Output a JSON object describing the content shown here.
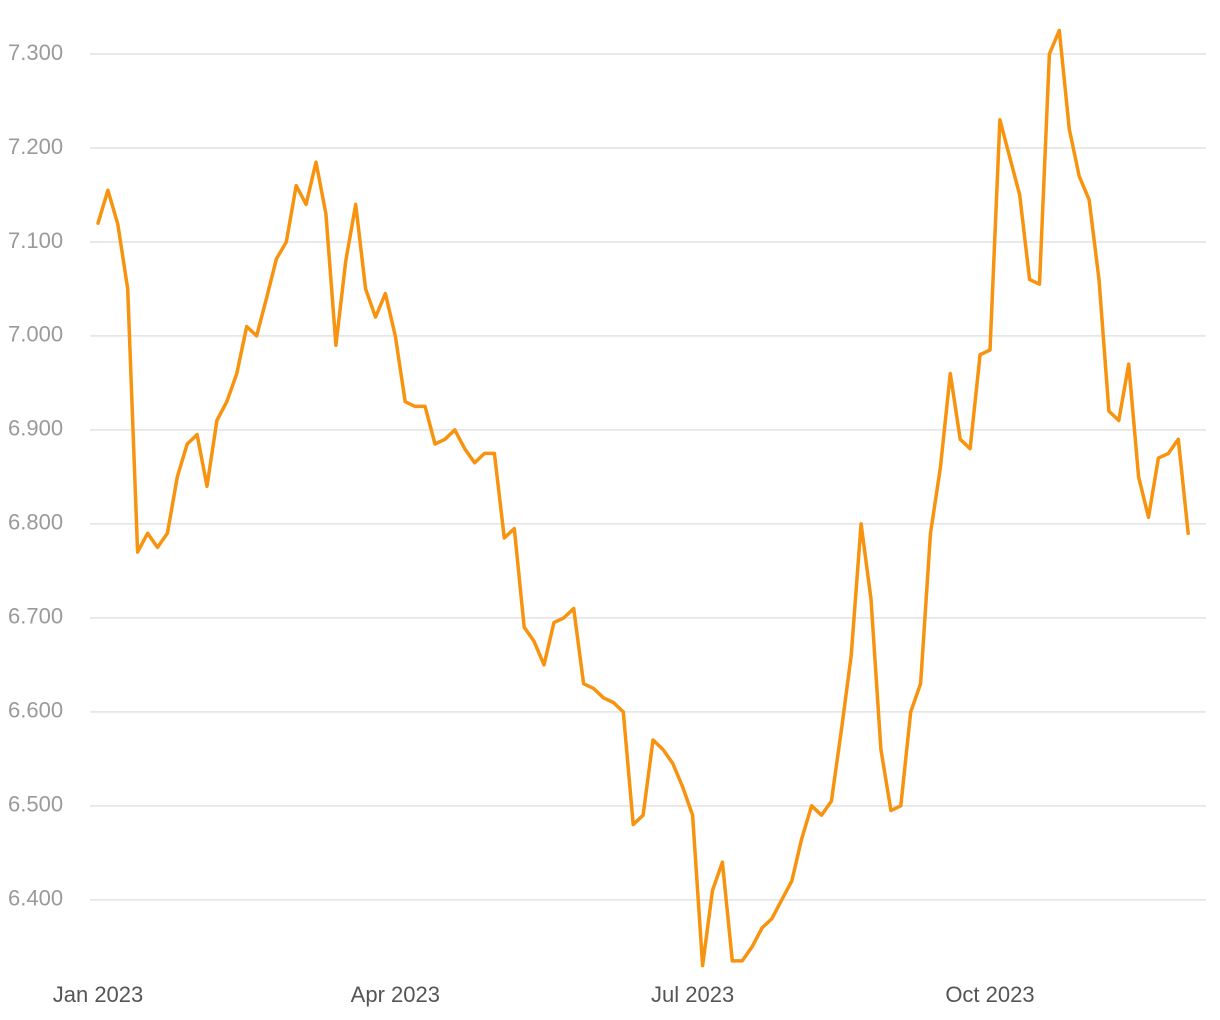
{
  "chart_data": {
    "type": "line",
    "color": "#f7930f",
    "grid": true,
    "values": [
      7.12,
      7.155,
      7.119,
      7.05,
      6.77,
      6.79,
      6.775,
      6.79,
      6.85,
      6.885,
      6.895,
      6.84,
      6.91,
      6.93,
      6.96,
      7.01,
      7.0,
      7.04,
      7.082,
      7.1,
      7.16,
      7.14,
      7.185,
      7.13,
      6.99,
      7.08,
      7.14,
      7.05,
      7.02,
      7.045,
      7.0,
      6.93,
      6.925,
      6.925,
      6.885,
      6.89,
      6.9,
      6.88,
      6.865,
      6.875,
      6.875,
      6.785,
      6.795,
      6.69,
      6.675,
      6.65,
      6.695,
      6.7,
      6.71,
      6.63,
      6.625,
      6.615,
      6.61,
      6.6,
      6.48,
      6.49,
      6.57,
      6.56,
      6.545,
      6.52,
      6.49,
      6.33,
      6.41,
      6.44,
      6.335,
      6.335,
      6.35,
      6.37,
      6.38,
      6.4,
      6.42,
      6.465,
      6.5,
      6.49,
      6.505,
      6.58,
      6.66,
      6.8,
      6.72,
      6.56,
      6.495,
      6.5,
      6.6,
      6.63,
      6.79,
      6.86,
      6.96,
      6.89,
      6.88,
      6.98,
      6.985,
      7.23,
      7.19,
      7.15,
      7.06,
      7.055,
      7.3,
      7.325,
      7.22,
      7.17,
      7.145,
      7.06,
      6.92,
      6.91,
      6.97,
      6.85,
      6.807,
      6.87,
      6.875,
      6.89,
      6.79
    ],
    "xlim": [
      0,
      112
    ],
    "xticks": [
      {
        "value": 0,
        "label": "Jan 2023"
      },
      {
        "value": 30,
        "label": "Apr 2023"
      },
      {
        "value": 60,
        "label": "Jul 2023"
      },
      {
        "value": 90,
        "label": "Oct 2023"
      }
    ],
    "ylim": [
      6.32,
      7.34
    ],
    "yticks": [
      {
        "value": 6.4,
        "label": "6.400"
      },
      {
        "value": 6.5,
        "label": "6.500"
      },
      {
        "value": 6.6,
        "label": "6.600"
      },
      {
        "value": 6.7,
        "label": "6.700"
      },
      {
        "value": 6.8,
        "label": "6.800"
      },
      {
        "value": 6.9,
        "label": "6.900"
      },
      {
        "value": 7.0,
        "label": "7.000"
      },
      {
        "value": 7.1,
        "label": "7.100"
      },
      {
        "value": 7.2,
        "label": "7.200"
      },
      {
        "value": 7.3,
        "label": "7.300"
      }
    ]
  }
}
